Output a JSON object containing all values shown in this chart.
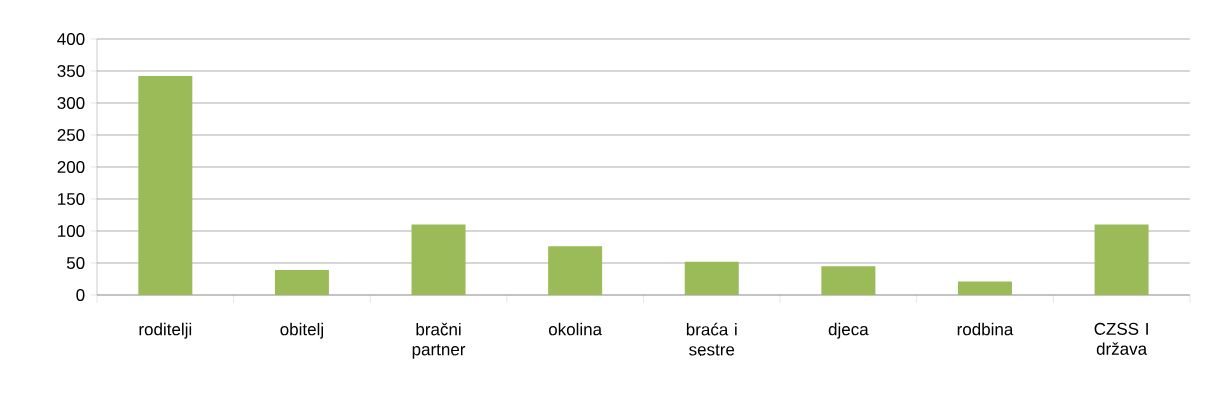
{
  "chart_data": {
    "type": "bar",
    "categories": [
      "roditelji",
      "obitelj",
      "bračni partner",
      "okolina",
      "braća i sestre",
      "djeca",
      "rodbina",
      "CZSS I država"
    ],
    "values": [
      342,
      39,
      110,
      76,
      52,
      45,
      21,
      110
    ],
    "color": "#9bbb59",
    "ylim": [
      0,
      400
    ],
    "yticks": [
      0,
      50,
      100,
      150,
      200,
      250,
      300,
      350,
      400
    ],
    "grid": "y"
  }
}
